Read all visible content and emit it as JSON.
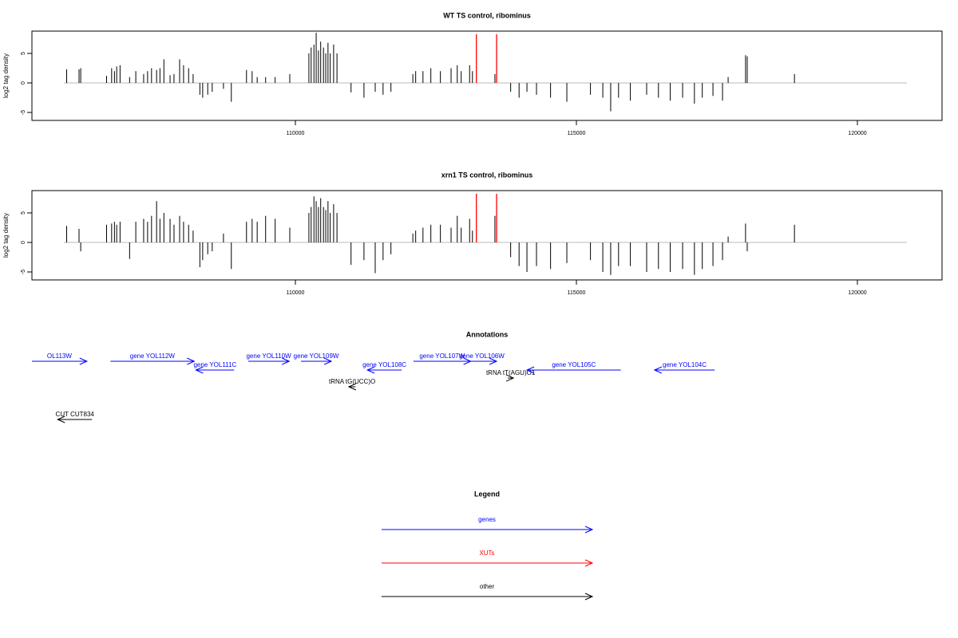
{
  "chart_data": [
    {
      "type": "bar",
      "title": "WT TS control, ribominus",
      "ylabel": "log2 tag density",
      "xlim": [
        105312,
        121506
      ],
      "ylim": [
        -6.35,
        8.78
      ],
      "xticks": [
        110000,
        115000,
        120000
      ],
      "yticks": [
        -5,
        0,
        5
      ],
      "color": "#000000",
      "baseline": [
        105880,
        120880
      ],
      "baseline_color": "#bbbbbb",
      "highlights": {
        "color": "#ff0000",
        "x": [
          113220,
          113580
        ]
      },
      "x": [
        105930,
        106150,
        106180,
        106640,
        106730,
        106780,
        106820,
        106880,
        107050,
        107160,
        107300,
        107370,
        107440,
        107530,
        107590,
        107660,
        107770,
        107840,
        107940,
        108010,
        108100,
        108180,
        108300,
        108350,
        108440,
        108520,
        108720,
        108860,
        109130,
        109230,
        109320,
        109470,
        109640,
        109900,
        110240,
        110280,
        110330,
        110370,
        110410,
        110450,
        110500,
        110540,
        110580,
        110620,
        110680,
        110740,
        110990,
        111220,
        111420,
        111560,
        111700,
        112090,
        112140,
        112270,
        112410,
        112580,
        112770,
        112880,
        112950,
        113100,
        113150,
        113550,
        113830,
        113980,
        114120,
        114290,
        114540,
        114830,
        115250,
        115470,
        115610,
        115750,
        115960,
        116250,
        116460,
        116670,
        116890,
        117100,
        117240,
        117430,
        117600,
        117700,
        118010,
        118040,
        118880
      ],
      "values": [
        2.3,
        2.3,
        2.5,
        1.2,
        2.5,
        2,
        2.8,
        3,
        1,
        2,
        1.5,
        2,
        2.5,
        2.2,
        2.5,
        4,
        1.3,
        1.5,
        4,
        3,
        2.5,
        1.5,
        -2,
        -2.5,
        -2,
        -1.5,
        -1,
        -3.2,
        2.2,
        2,
        1,
        1,
        1,
        1.5,
        5,
        6,
        6.5,
        8.5,
        5.5,
        7,
        6,
        5,
        6.8,
        5,
        6.5,
        5,
        -1.6,
        -2.5,
        -1.5,
        -2,
        -1.5,
        1.5,
        2,
        2,
        2.5,
        2,
        2.5,
        3,
        2,
        3,
        2,
        1.5,
        -1.5,
        -2.5,
        -1.5,
        -2,
        -2.5,
        -3.2,
        -2,
        -2.5,
        -4.8,
        -2.5,
        -3,
        -2,
        -2.5,
        -3,
        -2.5,
        -3.5,
        -2.5,
        -2.2,
        -3,
        1,
        4.7,
        4.5,
        1.5
      ]
    },
    {
      "type": "bar",
      "title": "xrn1 TS control, ribominus",
      "ylabel": "log2 tag density",
      "xlim": [
        105312,
        121506
      ],
      "ylim": [
        -6.35,
        8.78
      ],
      "xticks": [
        110000,
        115000,
        120000
      ],
      "yticks": [
        -5,
        0,
        5
      ],
      "color": "#000000",
      "baseline": [
        105880,
        120880
      ],
      "baseline_color": "#bbbbbb",
      "highlights": {
        "color": "#ff0000",
        "x": [
          113220,
          113580
        ]
      },
      "x": [
        105930,
        106150,
        106180,
        106640,
        106730,
        106780,
        106820,
        106880,
        107050,
        107160,
        107300,
        107370,
        107440,
        107530,
        107590,
        107660,
        107770,
        107840,
        107940,
        108010,
        108100,
        108180,
        108300,
        108350,
        108440,
        108520,
        108720,
        108860,
        109130,
        109230,
        109320,
        109470,
        109640,
        109900,
        110240,
        110280,
        110330,
        110370,
        110410,
        110450,
        110500,
        110540,
        110580,
        110620,
        110680,
        110740,
        110990,
        111220,
        111420,
        111560,
        111700,
        112090,
        112140,
        112270,
        112410,
        112580,
        112770,
        112880,
        112950,
        113100,
        113150,
        113550,
        113830,
        113980,
        114120,
        114290,
        114540,
        114830,
        115250,
        115470,
        115610,
        115750,
        115960,
        116250,
        116460,
        116670,
        116890,
        117100,
        117240,
        117430,
        117600,
        117700,
        118010,
        118040,
        118880
      ],
      "values": [
        2.8,
        2.3,
        -1.5,
        3,
        3.2,
        3.5,
        3,
        3.5,
        -2.8,
        3.5,
        4,
        3.5,
        4.5,
        7,
        4,
        5,
        4,
        3,
        4.5,
        3.5,
        3,
        2,
        -4.2,
        -3,
        -2,
        -1.5,
        1.5,
        -4.5,
        3.5,
        4,
        3.5,
        4.5,
        4,
        2.5,
        5,
        6,
        7.8,
        7,
        6,
        7.5,
        6,
        5.5,
        7,
        5,
        6.5,
        5,
        -3.8,
        -3,
        -5.2,
        -3,
        -2,
        1.5,
        2,
        2.5,
        3,
        3,
        2.5,
        4.5,
        2.5,
        4,
        2,
        4.5,
        -2.5,
        -4,
        -5,
        -4,
        -4.5,
        -3.5,
        -3,
        -5,
        -5.5,
        -4,
        -4,
        -5,
        -4.5,
        -5,
        -4.5,
        -5.5,
        -4.5,
        -4,
        -3,
        1,
        3.2,
        -1.5,
        3
      ]
    }
  ],
  "annotations": {
    "title": "Annotations",
    "xlim": [
      105312,
      121506
    ],
    "features": [
      {
        "label": "OL113W",
        "start": 105310,
        "end": 106290,
        "strand": "+",
        "color": "#0000ff"
      },
      {
        "label": "gene YOL112W",
        "start": 106710,
        "end": 108200,
        "strand": "+",
        "color": "#0000ff"
      },
      {
        "label": "gene YOL111C",
        "start": 108230,
        "end": 108910,
        "strand": "-",
        "color": "#0000ff"
      },
      {
        "label": "gene YOL110W",
        "start": 109160,
        "end": 109890,
        "strand": "+",
        "color": "#0000ff"
      },
      {
        "label": "gene YOL109W",
        "start": 110100,
        "end": 110640,
        "strand": "+",
        "color": "#0000ff"
      },
      {
        "label": "tRNA tG(UCC)O",
        "start": 110950,
        "end": 111070,
        "strand": "-",
        "color": "#000000"
      },
      {
        "label": "gene YOL108C",
        "start": 111280,
        "end": 111890,
        "strand": "-",
        "color": "#0000ff"
      },
      {
        "label": "gene YOL107W",
        "start": 112100,
        "end": 113120,
        "strand": "+",
        "color": "#0000ff"
      },
      {
        "label": "gene YOL106W",
        "start": 113050,
        "end": 113580,
        "strand": "+",
        "color": "#0000ff"
      },
      {
        "label": "tRNA tT(AGU)O1",
        "start": 113780,
        "end": 113880,
        "strand": "+",
        "color": "#000000"
      },
      {
        "label": "gene YOL105C",
        "start": 114120,
        "end": 115790,
        "strand": "-",
        "color": "#0000ff"
      },
      {
        "label": "gene YOL104C",
        "start": 116390,
        "end": 117460,
        "strand": "-",
        "color": "#0000ff"
      },
      {
        "label": "CUT CUT834",
        "start": 105770,
        "end": 106380,
        "strand": "-",
        "color": "#000000"
      }
    ]
  },
  "legend": {
    "title": "Legend",
    "items": [
      {
        "label": "genes",
        "color": "#0000ff"
      },
      {
        "label": "XUTs",
        "color": "#ff0000"
      },
      {
        "label": "other",
        "color": "#000000"
      }
    ]
  }
}
